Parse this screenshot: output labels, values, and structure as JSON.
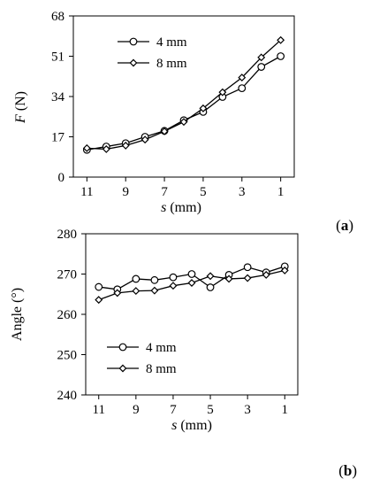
{
  "chart_data": [
    {
      "type": "line",
      "panel_label": "(a)",
      "panel_letter": "a",
      "xlabel": "s (mm)",
      "xlabel_var": "s",
      "xlabel_unit": " (mm)",
      "ylabel": "F (N)",
      "ylabel_var": "F",
      "ylabel_unit": " (N)",
      "x_reversed": true,
      "xlim": [
        11.7,
        0.3
      ],
      "ylim": [
        0,
        68
      ],
      "x_ticks": [
        11,
        9,
        7,
        5,
        3,
        1
      ],
      "y_ticks": [
        0,
        17,
        34,
        51,
        68
      ],
      "x": [
        11,
        10,
        9,
        8,
        7,
        6,
        5,
        4,
        3,
        2,
        1
      ],
      "series": [
        {
          "name": "4 mm",
          "marker": "circle",
          "values": [
            11.5,
            12.9,
            14.3,
            17.0,
            19.5,
            24.0,
            27.5,
            33.8,
            37.5,
            46.5,
            51.0
          ]
        },
        {
          "name": "8 mm",
          "marker": "diamond",
          "values": [
            12.2,
            11.8,
            13.3,
            15.8,
            19.3,
            23.3,
            29.0,
            35.8,
            42.0,
            50.5,
            57.8
          ]
        }
      ],
      "legend_position": "top-left",
      "grid": false
    },
    {
      "type": "line",
      "panel_label": "(b)",
      "panel_letter": "b",
      "xlabel": "s (mm)",
      "xlabel_var": "s",
      "xlabel_unit": " (mm)",
      "ylabel": "Angle (°)",
      "x_reversed": true,
      "xlim": [
        11.7,
        0.3
      ],
      "ylim": [
        240,
        280
      ],
      "x_ticks": [
        11,
        9,
        7,
        5,
        3,
        1
      ],
      "y_ticks": [
        240,
        250,
        260,
        270,
        280
      ],
      "x": [
        11,
        10,
        9,
        8,
        7,
        6,
        5,
        4,
        3,
        2,
        1
      ],
      "series": [
        {
          "name": "4 mm",
          "marker": "circle",
          "values": [
            266.8,
            266.2,
            268.8,
            268.5,
            269.2,
            270.0,
            266.7,
            269.8,
            271.7,
            270.4,
            271.9
          ]
        },
        {
          "name": "8 mm",
          "marker": "diamond",
          "values": [
            263.6,
            265.3,
            265.8,
            265.9,
            267.1,
            267.8,
            269.5,
            268.8,
            269.0,
            269.8,
            270.9
          ]
        }
      ],
      "legend_position": "bottom-left",
      "grid": false
    }
  ]
}
